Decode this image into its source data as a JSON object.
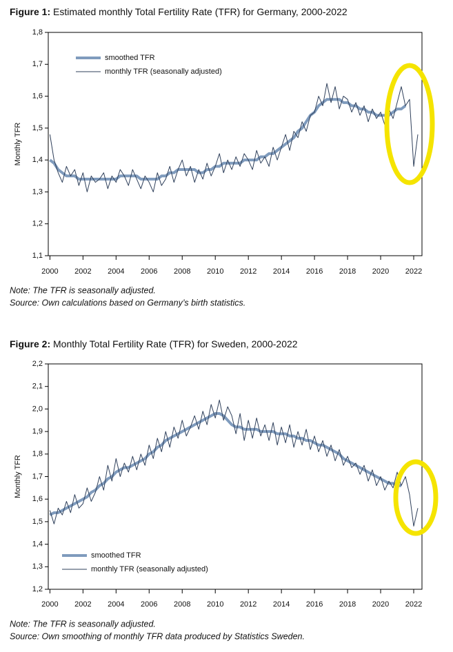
{
  "chart_data": [
    {
      "type": "line",
      "figure_label": "Figure 1:",
      "title": "Estimated monthly Total Fertility Rate (TFR) for Germany, 2000-2022",
      "y_label": "Monthly TFR",
      "notes": [
        "Note: The TFR is seasonally adjusted.",
        "Source: Own calculations based on Germany’s birth statistics."
      ],
      "legend": "top-left",
      "xlim": [
        1999.9,
        2022.5
      ],
      "xticks": [
        2000,
        2002,
        2004,
        2006,
        2008,
        2010,
        2012,
        2014,
        2016,
        2018,
        2020,
        2022
      ],
      "ylim": [
        1.1,
        1.8
      ],
      "yticks": [
        {
          "value": 1.1,
          "label": "1,1"
        },
        {
          "value": 1.2,
          "label": "1,2"
        },
        {
          "value": 1.3,
          "label": "1,3"
        },
        {
          "value": 1.4,
          "label": "1,4"
        },
        {
          "value": 1.5,
          "label": "1,5"
        },
        {
          "value": 1.6,
          "label": "1,6"
        },
        {
          "value": 1.7,
          "label": "1,7"
        },
        {
          "value": 1.8,
          "label": "1,8"
        }
      ],
      "x": [
        2000,
        2000.25,
        2000.5,
        2000.75,
        2001,
        2001.25,
        2001.5,
        2001.75,
        2002,
        2002.25,
        2002.5,
        2002.75,
        2003,
        2003.25,
        2003.5,
        2003.75,
        2004,
        2004.25,
        2004.5,
        2004.75,
        2005,
        2005.25,
        2005.5,
        2005.75,
        2006,
        2006.25,
        2006.5,
        2006.75,
        2007,
        2007.25,
        2007.5,
        2007.75,
        2008,
        2008.25,
        2008.5,
        2008.75,
        2009,
        2009.25,
        2009.5,
        2009.75,
        2010,
        2010.25,
        2010.5,
        2010.75,
        2011,
        2011.25,
        2011.5,
        2011.75,
        2012,
        2012.25,
        2012.5,
        2012.75,
        2013,
        2013.25,
        2013.5,
        2013.75,
        2014,
        2014.25,
        2014.5,
        2014.75,
        2015,
        2015.25,
        2015.5,
        2015.75,
        2016,
        2016.25,
        2016.5,
        2016.75,
        2017,
        2017.25,
        2017.5,
        2017.75,
        2018,
        2018.25,
        2018.5,
        2018.75,
        2019,
        2019.25,
        2019.5,
        2019.75,
        2020,
        2020.25,
        2020.5,
        2020.75,
        2021,
        2021.25,
        2021.5,
        2021.75,
        2022,
        2022.25
      ],
      "series": [
        {
          "name": "smoothed TFR",
          "color": "#7f9bbd",
          "width": 4,
          "values": [
            1.4,
            1.39,
            1.37,
            1.36,
            1.35,
            1.35,
            1.35,
            1.34,
            1.34,
            1.34,
            1.34,
            1.34,
            1.34,
            1.34,
            1.34,
            1.34,
            1.34,
            1.35,
            1.35,
            1.35,
            1.35,
            1.35,
            1.34,
            1.34,
            1.34,
            1.34,
            1.34,
            1.35,
            1.35,
            1.36,
            1.36,
            1.37,
            1.37,
            1.37,
            1.37,
            1.37,
            1.36,
            1.36,
            1.37,
            1.37,
            1.38,
            1.38,
            1.39,
            1.39,
            1.39,
            1.39,
            1.39,
            1.4,
            1.4,
            1.4,
            1.4,
            1.41,
            1.41,
            1.42,
            1.42,
            1.43,
            1.44,
            1.45,
            1.46,
            1.47,
            1.49,
            1.5,
            1.52,
            1.54,
            1.55,
            1.57,
            1.58,
            1.59,
            1.59,
            1.59,
            1.59,
            1.58,
            1.58,
            1.57,
            1.57,
            1.56,
            1.56,
            1.55,
            1.55,
            1.54,
            1.54,
            1.54,
            1.54,
            1.55,
            1.56,
            1.56,
            1.57,
            null,
            null,
            null
          ]
        },
        {
          "name": "monthly TFR (seasonally adjusted)",
          "color": "#2e3f5a",
          "width": 1,
          "values": [
            1.48,
            1.4,
            1.36,
            1.33,
            1.38,
            1.35,
            1.37,
            1.32,
            1.36,
            1.3,
            1.35,
            1.33,
            1.34,
            1.36,
            1.31,
            1.35,
            1.33,
            1.37,
            1.35,
            1.32,
            1.37,
            1.34,
            1.31,
            1.35,
            1.33,
            1.3,
            1.36,
            1.32,
            1.34,
            1.38,
            1.33,
            1.37,
            1.4,
            1.35,
            1.38,
            1.33,
            1.37,
            1.34,
            1.39,
            1.35,
            1.38,
            1.42,
            1.36,
            1.4,
            1.37,
            1.41,
            1.38,
            1.42,
            1.4,
            1.37,
            1.43,
            1.39,
            1.41,
            1.38,
            1.44,
            1.4,
            1.44,
            1.48,
            1.43,
            1.49,
            1.47,
            1.52,
            1.49,
            1.54,
            1.55,
            1.6,
            1.57,
            1.64,
            1.58,
            1.63,
            1.56,
            1.6,
            1.59,
            1.55,
            1.58,
            1.54,
            1.57,
            1.52,
            1.56,
            1.53,
            1.55,
            1.51,
            1.56,
            1.53,
            1.58,
            1.63,
            1.57,
            1.59,
            1.38,
            1.48
          ]
        }
      ]
    },
    {
      "type": "line",
      "figure_label": "Figure 2:",
      "title": "Monthly Total Fertility Rate (TFR) for Sweden, 2000-2022",
      "y_label": "Monthly TFR",
      "notes": [
        "Note: The TFR is seasonally adjusted.",
        "Source: Own smoothing of monthly TFR data produced by Statistics Sweden."
      ],
      "legend": "bottom-left",
      "xlim": [
        1999.9,
        2022.5
      ],
      "xticks": [
        2000,
        2002,
        2004,
        2006,
        2008,
        2010,
        2012,
        2014,
        2016,
        2018,
        2020,
        2022
      ],
      "ylim": [
        1.2,
        2.2
      ],
      "yticks": [
        {
          "value": 1.2,
          "label": "1,2"
        },
        {
          "value": 1.3,
          "label": "1,3"
        },
        {
          "value": 1.4,
          "label": "1,4"
        },
        {
          "value": 1.5,
          "label": "1,5"
        },
        {
          "value": 1.6,
          "label": "1,6"
        },
        {
          "value": 1.7,
          "label": "1,7"
        },
        {
          "value": 1.8,
          "label": "1,8"
        },
        {
          "value": 1.9,
          "label": "1,9"
        },
        {
          "value": 2.0,
          "label": "2,0"
        },
        {
          "value": 2.1,
          "label": "2,1"
        },
        {
          "value": 2.2,
          "label": "2,2"
        }
      ],
      "x": [
        2000,
        2000.25,
        2000.5,
        2000.75,
        2001,
        2001.25,
        2001.5,
        2001.75,
        2002,
        2002.25,
        2002.5,
        2002.75,
        2003,
        2003.25,
        2003.5,
        2003.75,
        2004,
        2004.25,
        2004.5,
        2004.75,
        2005,
        2005.25,
        2005.5,
        2005.75,
        2006,
        2006.25,
        2006.5,
        2006.75,
        2007,
        2007.25,
        2007.5,
        2007.75,
        2008,
        2008.25,
        2008.5,
        2008.75,
        2009,
        2009.25,
        2009.5,
        2009.75,
        2010,
        2010.25,
        2010.5,
        2010.75,
        2011,
        2011.25,
        2011.5,
        2011.75,
        2012,
        2012.25,
        2012.5,
        2012.75,
        2013,
        2013.25,
        2013.5,
        2013.75,
        2014,
        2014.25,
        2014.5,
        2014.75,
        2015,
        2015.25,
        2015.5,
        2015.75,
        2016,
        2016.25,
        2016.5,
        2016.75,
        2017,
        2017.25,
        2017.5,
        2017.75,
        2018,
        2018.25,
        2018.5,
        2018.75,
        2019,
        2019.25,
        2019.5,
        2019.75,
        2020,
        2020.25,
        2020.5,
        2020.75,
        2021,
        2021.25,
        2021.5,
        2021.75,
        2022,
        2022.25
      ],
      "series": [
        {
          "name": "smoothed TFR",
          "color": "#7f9bbd",
          "width": 4,
          "values": [
            1.53,
            1.54,
            1.54,
            1.55,
            1.56,
            1.57,
            1.58,
            1.59,
            1.6,
            1.61,
            1.63,
            1.64,
            1.66,
            1.67,
            1.69,
            1.7,
            1.72,
            1.73,
            1.74,
            1.74,
            1.75,
            1.76,
            1.77,
            1.78,
            1.8,
            1.81,
            1.83,
            1.84,
            1.86,
            1.87,
            1.88,
            1.89,
            1.9,
            1.91,
            1.92,
            1.93,
            1.94,
            1.95,
            1.96,
            1.97,
            1.98,
            1.98,
            1.97,
            1.95,
            1.93,
            1.92,
            1.92,
            1.91,
            1.91,
            1.91,
            1.91,
            1.9,
            1.9,
            1.9,
            1.9,
            1.89,
            1.89,
            1.89,
            1.88,
            1.88,
            1.87,
            1.87,
            1.86,
            1.86,
            1.85,
            1.84,
            1.84,
            1.83,
            1.82,
            1.81,
            1.8,
            1.78,
            1.77,
            1.76,
            1.75,
            1.74,
            1.73,
            1.72,
            1.71,
            1.7,
            1.69,
            1.68,
            1.67,
            1.67,
            1.66,
            1.66,
            null,
            null,
            null,
            null
          ]
        },
        {
          "name": "monthly TFR (seasonally adjusted)",
          "color": "#2e3f5a",
          "width": 1,
          "values": [
            1.55,
            1.49,
            1.56,
            1.53,
            1.59,
            1.54,
            1.62,
            1.56,
            1.58,
            1.65,
            1.59,
            1.63,
            1.7,
            1.64,
            1.75,
            1.68,
            1.78,
            1.7,
            1.76,
            1.72,
            1.79,
            1.73,
            1.8,
            1.75,
            1.84,
            1.78,
            1.87,
            1.81,
            1.9,
            1.83,
            1.92,
            1.87,
            1.95,
            1.88,
            1.92,
            1.97,
            1.91,
            1.99,
            1.93,
            2.02,
            1.96,
            2.04,
            1.95,
            2.01,
            1.97,
            1.89,
            1.98,
            1.86,
            1.95,
            1.87,
            1.96,
            1.88,
            1.93,
            1.86,
            1.94,
            1.84,
            1.92,
            1.85,
            1.93,
            1.83,
            1.9,
            1.84,
            1.91,
            1.82,
            1.88,
            1.81,
            1.86,
            1.79,
            1.84,
            1.77,
            1.82,
            1.75,
            1.79,
            1.74,
            1.76,
            1.71,
            1.75,
            1.68,
            1.73,
            1.66,
            1.7,
            1.64,
            1.68,
            1.65,
            1.72,
            1.66,
            1.7,
            1.62,
            1.48,
            1.56
          ]
        }
      ]
    }
  ]
}
